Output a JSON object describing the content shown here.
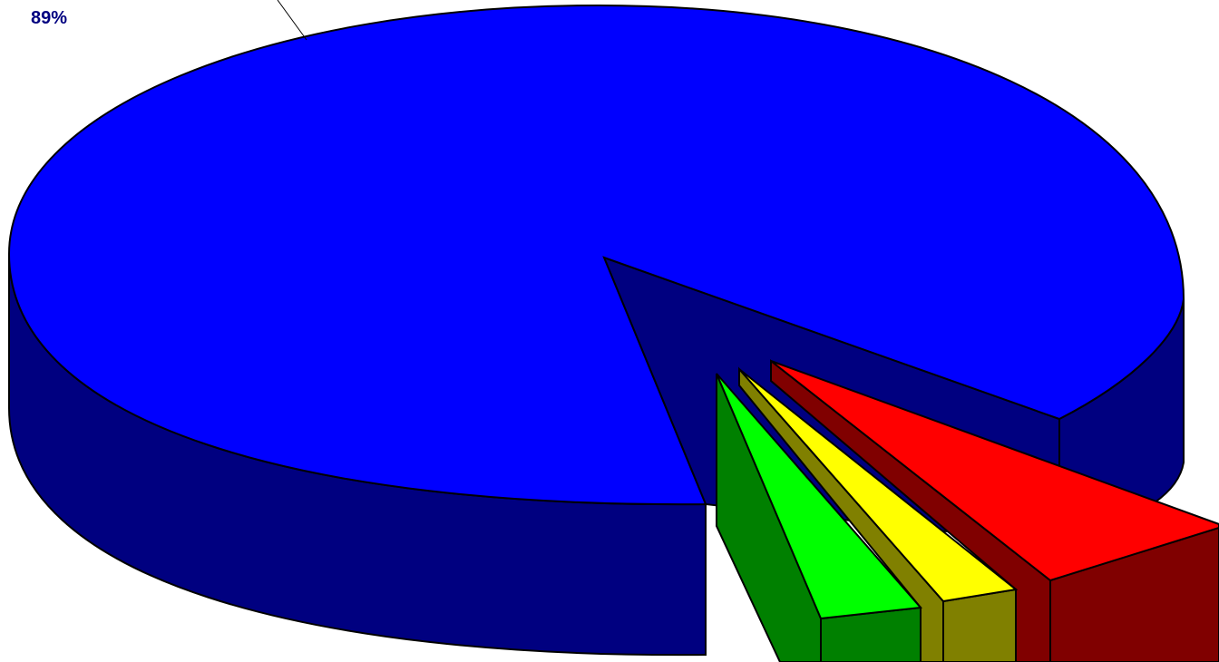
{
  "chart_data": {
    "type": "pie",
    "style": "3d-exploded",
    "values": [
      89,
      5,
      2,
      2,
      2
    ],
    "labels": [
      "89%",
      "",
      "",
      "",
      ""
    ],
    "colors": {
      "top": [
        "#0000ff",
        "#ff0000",
        "#ffff00",
        "#00ff00",
        "#00ff00"
      ],
      "side": [
        "#000080",
        "#800000",
        "#808000",
        "#008000",
        "#008000"
      ]
    },
    "label_color": "#000080"
  }
}
